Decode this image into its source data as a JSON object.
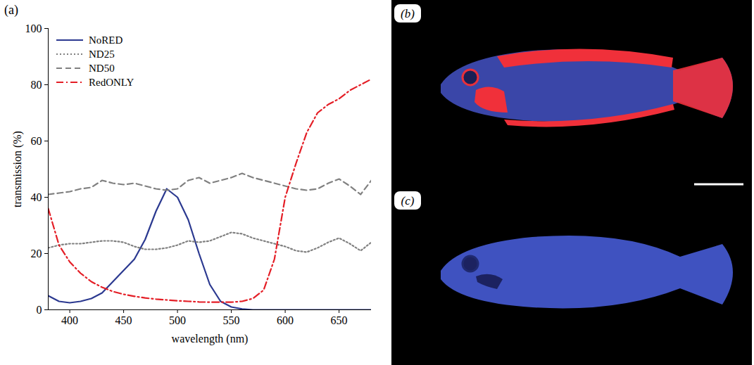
{
  "chart_data": {
    "type": "line",
    "panel_label": "(a)",
    "x_label": "wavelength (nm)",
    "y_label": "transmission (%)",
    "x": [
      380,
      390,
      400,
      410,
      420,
      430,
      440,
      450,
      460,
      470,
      480,
      490,
      500,
      510,
      520,
      530,
      540,
      550,
      560,
      570,
      580,
      590,
      600,
      610,
      620,
      630,
      640,
      650,
      660,
      670,
      680
    ],
    "series": [
      {
        "name": "NoRED",
        "color": "#2b3990",
        "line_style": "solid",
        "values": [
          5,
          3,
          2.5,
          3,
          4,
          6,
          10,
          14,
          18,
          25,
          35,
          43,
          40,
          32,
          20,
          9,
          3,
          1,
          0.3,
          0,
          0,
          0,
          0,
          0,
          0,
          0,
          0,
          0,
          0,
          0,
          0
        ]
      },
      {
        "name": "ND25",
        "color": "#808080",
        "line_style": "dotted",
        "values": [
          22,
          23,
          23.5,
          23.5,
          24,
          24.5,
          24.5,
          24,
          22.5,
          21.5,
          21.5,
          22,
          23,
          24.5,
          24,
          24.5,
          26,
          27.5,
          27,
          25.5,
          24.5,
          23.5,
          22.5,
          21,
          20.5,
          22,
          24,
          25.5,
          23.5,
          21,
          24
        ]
      },
      {
        "name": "ND50",
        "color": "#808080",
        "line_style": "dashed",
        "values": [
          41,
          41.5,
          42,
          43,
          43.5,
          46,
          45,
          44.5,
          45,
          44,
          43,
          42.5,
          43,
          46,
          47,
          45,
          46,
          47,
          48.5,
          47,
          46,
          45,
          44,
          43,
          42.5,
          43,
          45,
          46.5,
          44,
          41,
          46
        ]
      },
      {
        "name": "RedONLY",
        "color": "#e41e26",
        "line_style": "dashdot",
        "values": [
          36,
          23,
          17,
          13,
          10,
          8,
          6.5,
          5.5,
          4.8,
          4.2,
          3.8,
          3.5,
          3.2,
          3,
          2.8,
          2.7,
          2.7,
          2.7,
          3,
          4,
          7,
          18,
          40,
          52,
          63,
          70,
          73,
          75,
          78,
          80,
          82
        ]
      }
    ],
    "xlim": [
      380,
      680
    ],
    "xticks": [
      400,
      450,
      500,
      550,
      600,
      650
    ],
    "ylim": [
      0,
      100
    ],
    "yticks": [
      0,
      20,
      40,
      60,
      80,
      100
    ],
    "grid": false,
    "legend": "top-left"
  },
  "photos": [
    {
      "label": "(b)"
    },
    {
      "label": "(c)"
    }
  ]
}
